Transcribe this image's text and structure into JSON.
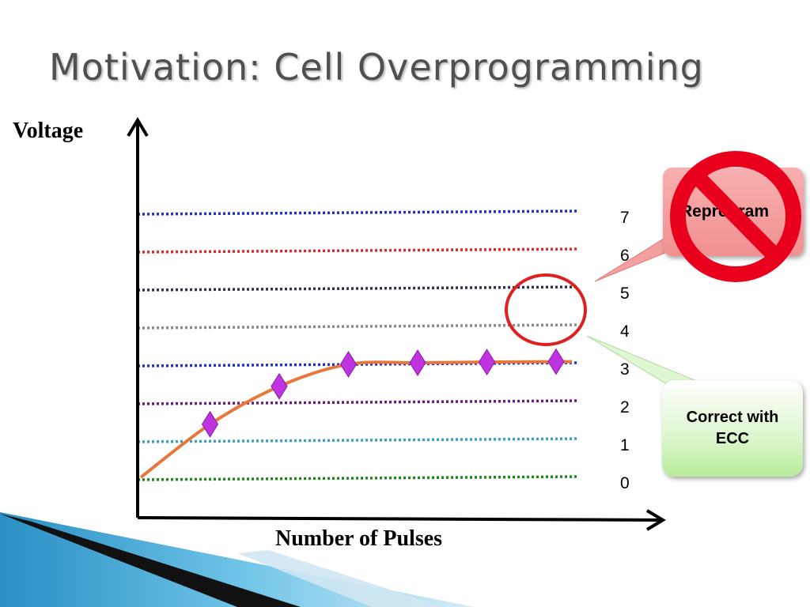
{
  "slide": {
    "title": "Motivation: Cell Overprogramming"
  },
  "chart_data": {
    "type": "line",
    "title": "Motivation: Cell Overprogramming",
    "xlabel": "Number of Pulses",
    "ylabel": "Voltage",
    "levels": [
      "7",
      "6",
      "5",
      "4",
      "3",
      "2",
      "1",
      "0"
    ],
    "level_colors": [
      "#1f2fd0",
      "#e02828",
      "#303050",
      "#8a8a8a",
      "#2030d0",
      "#6a1a80",
      "#3aa0c0",
      "#1a8a1a"
    ],
    "series": [
      {
        "x": [
          0,
          1,
          2,
          3,
          4,
          5,
          6
        ],
        "y": [
          0,
          1.4,
          2.4,
          2.98,
          3.02,
          3.04,
          3.05
        ]
      }
    ],
    "curve_color": "#e8773a",
    "marker_color": "#c033e0",
    "marker_shape": "diamond"
  },
  "callouts": {
    "reprogram": "Reprogram",
    "ecc": "Correct with\nECC"
  },
  "colors": {
    "callout_reprogram_bg": "#f4a0a0",
    "callout_ecc_bg": "#c8f0b0",
    "no_sign": "#e8001c",
    "highlight_circle": "#e02020"
  }
}
